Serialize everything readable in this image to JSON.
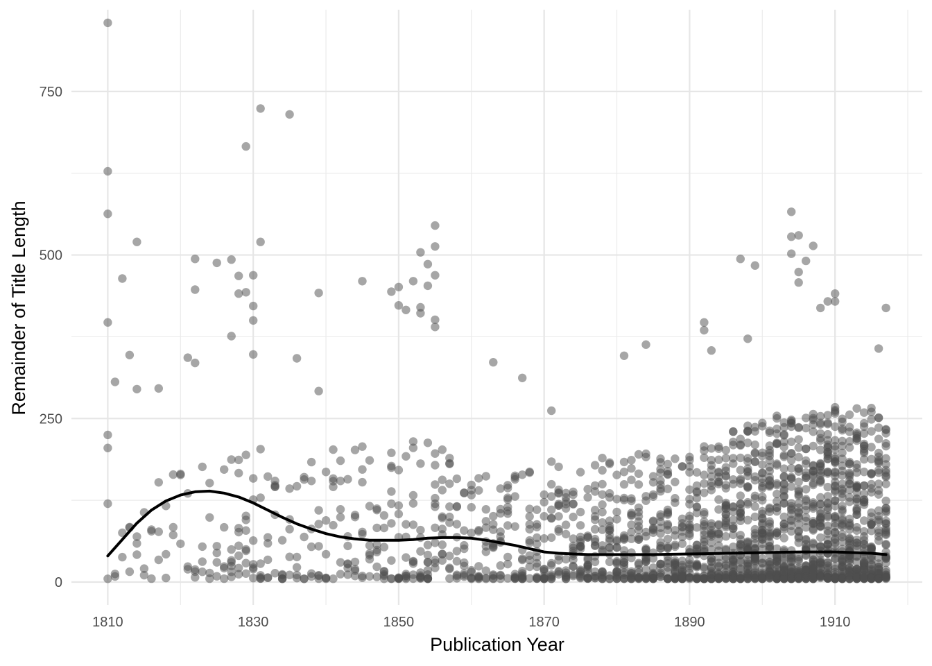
{
  "chart_data": {
    "type": "scatter",
    "xlabel": "Publication Year",
    "ylabel": "Remainder of Title Length",
    "xlim": [
      1805,
      1922
    ],
    "ylim": [
      -35,
      875
    ],
    "x_ticks": [
      1810,
      1830,
      1850,
      1870,
      1890,
      1910
    ],
    "x_tick_labels": [
      "1810",
      "1830",
      "1850",
      "1870",
      "1890",
      "1910"
    ],
    "x_minor_ticks": [
      1820,
      1840,
      1860,
      1880,
      1900,
      1920
    ],
    "y_ticks": [
      0,
      250,
      500,
      750
    ],
    "y_tick_labels": [
      "0",
      "250",
      "500",
      "750"
    ],
    "y_minor_ticks": [
      125,
      375,
      625
    ],
    "grid": true,
    "legend": "none",
    "point_color": "#4d4d4d",
    "point_alpha": 0.5,
    "smooth_color": "#000000",
    "points": [
      {
        "x": 1810,
        "y": 855
      },
      {
        "x": 1810,
        "y": 628
      },
      {
        "x": 1810,
        "y": 563
      },
      {
        "x": 1810,
        "y": 397
      },
      {
        "x": 1810,
        "y": 225
      },
      {
        "x": 1810,
        "y": 205
      },
      {
        "x": 1811,
        "y": 306
      },
      {
        "x": 1812,
        "y": 464
      },
      {
        "x": 1813,
        "y": 347
      },
      {
        "x": 1814,
        "y": 520
      },
      {
        "x": 1814,
        "y": 295
      },
      {
        "x": 1817,
        "y": 296
      },
      {
        "x": 1821,
        "y": 343
      },
      {
        "x": 1822,
        "y": 494
      },
      {
        "x": 1822,
        "y": 447
      },
      {
        "x": 1822,
        "y": 335
      },
      {
        "x": 1825,
        "y": 488
      },
      {
        "x": 1827,
        "y": 493
      },
      {
        "x": 1827,
        "y": 376
      },
      {
        "x": 1828,
        "y": 468
      },
      {
        "x": 1828,
        "y": 441
      },
      {
        "x": 1829,
        "y": 443
      },
      {
        "x": 1829,
        "y": 666
      },
      {
        "x": 1830,
        "y": 469
      },
      {
        "x": 1830,
        "y": 422
      },
      {
        "x": 1830,
        "y": 400
      },
      {
        "x": 1830,
        "y": 348
      },
      {
        "x": 1831,
        "y": 724
      },
      {
        "x": 1831,
        "y": 520
      },
      {
        "x": 1835,
        "y": 715
      },
      {
        "x": 1836,
        "y": 342
      },
      {
        "x": 1839,
        "y": 442
      },
      {
        "x": 1839,
        "y": 292
      },
      {
        "x": 1845,
        "y": 460
      },
      {
        "x": 1849,
        "y": 444
      },
      {
        "x": 1850,
        "y": 451
      },
      {
        "x": 1850,
        "y": 423
      },
      {
        "x": 1851,
        "y": 416
      },
      {
        "x": 1852,
        "y": 460
      },
      {
        "x": 1853,
        "y": 504
      },
      {
        "x": 1853,
        "y": 420
      },
      {
        "x": 1853,
        "y": 411
      },
      {
        "x": 1854,
        "y": 486
      },
      {
        "x": 1854,
        "y": 453
      },
      {
        "x": 1855,
        "y": 545
      },
      {
        "x": 1855,
        "y": 513
      },
      {
        "x": 1855,
        "y": 469
      },
      {
        "x": 1855,
        "y": 401
      },
      {
        "x": 1855,
        "y": 390
      },
      {
        "x": 1863,
        "y": 336
      },
      {
        "x": 1867,
        "y": 312
      },
      {
        "x": 1871,
        "y": 262
      },
      {
        "x": 1881,
        "y": 346
      },
      {
        "x": 1884,
        "y": 363
      },
      {
        "x": 1892,
        "y": 397
      },
      {
        "x": 1892,
        "y": 385
      },
      {
        "x": 1893,
        "y": 354
      },
      {
        "x": 1897,
        "y": 494
      },
      {
        "x": 1898,
        "y": 372
      },
      {
        "x": 1899,
        "y": 484
      },
      {
        "x": 1904,
        "y": 566
      },
      {
        "x": 1904,
        "y": 528
      },
      {
        "x": 1904,
        "y": 502
      },
      {
        "x": 1905,
        "y": 530
      },
      {
        "x": 1905,
        "y": 474
      },
      {
        "x": 1905,
        "y": 458
      },
      {
        "x": 1906,
        "y": 491
      },
      {
        "x": 1907,
        "y": 514
      },
      {
        "x": 1908,
        "y": 419
      },
      {
        "x": 1909,
        "y": 429
      },
      {
        "x": 1910,
        "y": 441
      },
      {
        "x": 1910,
        "y": 429
      },
      {
        "x": 1917,
        "y": 419
      },
      {
        "x": 1916,
        "y": 357
      }
    ],
    "cloud_profile": [
      {
        "x": 1810,
        "upper": 140,
        "n": 2
      },
      {
        "x": 1815,
        "upper": 165,
        "n": 3
      },
      {
        "x": 1820,
        "upper": 200,
        "n": 3
      },
      {
        "x": 1825,
        "upper": 200,
        "n": 4
      },
      {
        "x": 1828,
        "upper": 230,
        "n": 8
      },
      {
        "x": 1832,
        "upper": 190,
        "n": 6
      },
      {
        "x": 1836,
        "upper": 185,
        "n": 5
      },
      {
        "x": 1840,
        "upper": 200,
        "n": 6
      },
      {
        "x": 1845,
        "upper": 205,
        "n": 7
      },
      {
        "x": 1850,
        "upper": 215,
        "n": 9
      },
      {
        "x": 1855,
        "upper": 210,
        "n": 11
      },
      {
        "x": 1860,
        "upper": 175,
        "n": 10
      },
      {
        "x": 1865,
        "upper": 175,
        "n": 11
      },
      {
        "x": 1870,
        "upper": 180,
        "n": 13
      },
      {
        "x": 1875,
        "upper": 190,
        "n": 17
      },
      {
        "x": 1880,
        "upper": 185,
        "n": 20
      },
      {
        "x": 1885,
        "upper": 195,
        "n": 24
      },
      {
        "x": 1890,
        "upper": 200,
        "n": 28
      },
      {
        "x": 1895,
        "upper": 230,
        "n": 38
      },
      {
        "x": 1900,
        "upper": 245,
        "n": 46
      },
      {
        "x": 1905,
        "upper": 255,
        "n": 52
      },
      {
        "x": 1910,
        "upper": 265,
        "n": 55
      },
      {
        "x": 1915,
        "upper": 270,
        "n": 52
      },
      {
        "x": 1917,
        "upper": 260,
        "n": 45
      }
    ],
    "smooth": {
      "x": [
        1810,
        1812,
        1814,
        1816,
        1818,
        1820,
        1822,
        1824,
        1826,
        1828,
        1830,
        1832,
        1834,
        1836,
        1838,
        1840,
        1842,
        1844,
        1846,
        1848,
        1850,
        1852,
        1854,
        1856,
        1858,
        1860,
        1862,
        1864,
        1866,
        1868,
        1870,
        1872,
        1874,
        1876,
        1878,
        1880,
        1885,
        1890,
        1895,
        1900,
        1905,
        1910,
        1915,
        1917
      ],
      "y": [
        40,
        65,
        90,
        110,
        124,
        133,
        138,
        139,
        136,
        130,
        121,
        110,
        99,
        89,
        81,
        74,
        69,
        66,
        64,
        64,
        64,
        65,
        67,
        68,
        68,
        67,
        64,
        60,
        56,
        51,
        46,
        44,
        43,
        42,
        42,
        42,
        42,
        43,
        44,
        45,
        46,
        46,
        44,
        42
      ]
    }
  }
}
